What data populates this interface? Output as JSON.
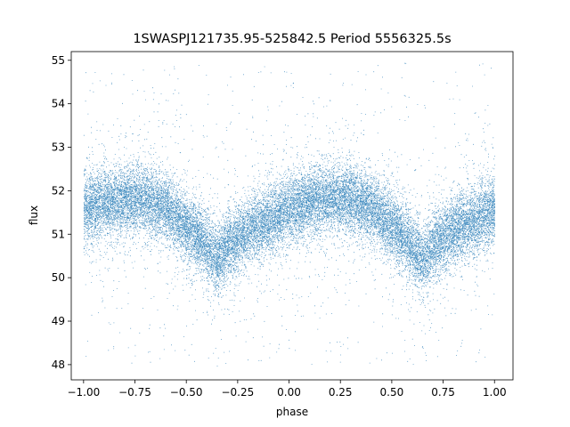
{
  "chart_data": {
    "type": "scatter",
    "title": "1SWASPJ121735.95-525842.5 Period 5556325.5s",
    "xlabel": "phase",
    "ylabel": "flux",
    "xlim": [
      -1.06,
      1.09
    ],
    "ylim": [
      47.65,
      55.2
    ],
    "x_ticks": [
      -1.0,
      -0.75,
      -0.5,
      -0.25,
      0.0,
      0.25,
      0.5,
      0.75,
      1.0
    ],
    "x_tick_labels": [
      "−1.00",
      "−0.75",
      "−0.50",
      "−0.25",
      "0.00",
      "0.25",
      "0.50",
      "0.75",
      "1.00"
    ],
    "y_ticks": [
      48,
      49,
      50,
      51,
      52,
      53,
      54,
      55
    ],
    "y_tick_labels": [
      "48",
      "49",
      "50",
      "51",
      "52",
      "53",
      "54",
      "55"
    ],
    "grid": false,
    "marker_color": "#1f77b4",
    "phase_curve": {
      "phase": [
        -1.0,
        -0.9,
        -0.8,
        -0.7,
        -0.6,
        -0.5,
        -0.4,
        -0.35,
        -0.3,
        -0.2,
        -0.1,
        0.0,
        0.1,
        0.2,
        0.3,
        0.4,
        0.5,
        0.6,
        0.65,
        0.7,
        0.8,
        0.9,
        1.0
      ],
      "flux_center": [
        51.6,
        51.7,
        51.8,
        51.8,
        51.6,
        51.2,
        50.7,
        50.4,
        50.7,
        51.1,
        51.3,
        51.6,
        51.75,
        51.8,
        51.8,
        51.6,
        51.2,
        50.7,
        50.4,
        50.7,
        51.1,
        51.3,
        51.6
      ]
    },
    "point_count": 26000,
    "outlier_range": [
      48.0,
      54.95
    ]
  }
}
